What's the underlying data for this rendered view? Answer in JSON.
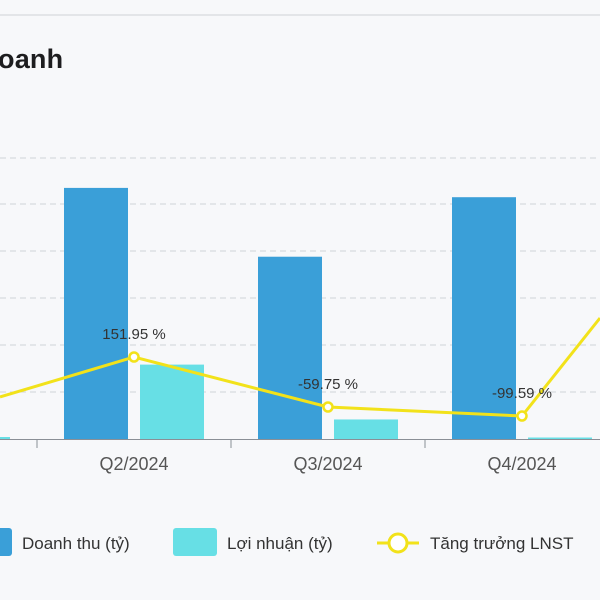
{
  "chart_data": {
    "type": "bar+line",
    "title": "oanh",
    "categories": [
      "Q2/2024",
      "Q3/2024",
      "Q4/2024"
    ],
    "series": [
      {
        "name": "Doanh thu (tỷ)",
        "type": "bar",
        "color": "#3a9fd8",
        "values": [
          270,
          196,
          260
        ]
      },
      {
        "name": "Lợi nhuận (tỷ)",
        "type": "bar",
        "color": "#67dfe5",
        "values": [
          80,
          21,
          1
        ]
      },
      {
        "name": "Tăng trưởng LNST",
        "type": "line",
        "color": "#f2e21a",
        "values": [
          151.95,
          -59.75,
          -99.59
        ]
      }
    ],
    "line_labels": [
      "151.95 %",
      "-59.75 %",
      "-99.59 %"
    ],
    "grid": true,
    "legend_position": "bottom"
  }
}
